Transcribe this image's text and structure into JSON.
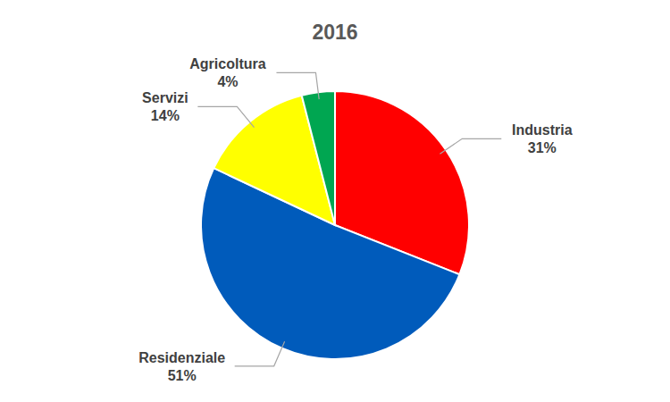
{
  "chart_data": {
    "type": "pie",
    "title": "2016",
    "categories": [
      "Industria",
      "Residenziale",
      "Servizi",
      "Agricoltura"
    ],
    "values": [
      31,
      51,
      14,
      4
    ],
    "value_labels": [
      "31%",
      "51%",
      "14%",
      "4%"
    ],
    "colors": [
      "#ff0000",
      "#005bbb",
      "#ffff00",
      "#00a651"
    ],
    "data_labels": true
  }
}
